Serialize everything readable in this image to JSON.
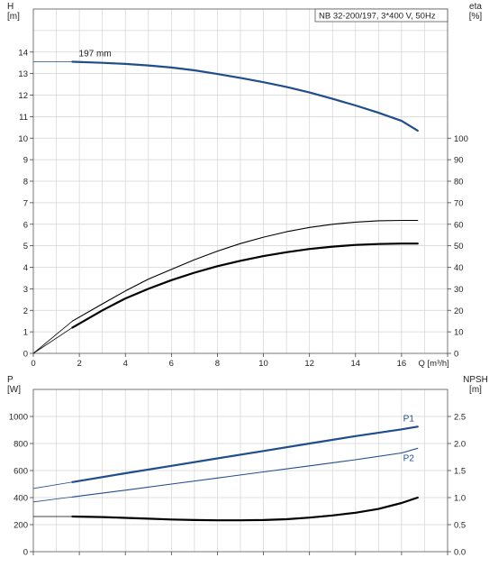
{
  "chart_data": [
    {
      "type": "line",
      "title": "NB 32-200/197, 3*400 V, 50Hz",
      "xlabel": "Q [m³/h]",
      "ylabel": "H\n[m]",
      "ylabel_lines": [
        "H",
        "[m]"
      ],
      "y2label_lines": [
        "eta",
        "[%]"
      ],
      "xlim": [
        0,
        18
      ],
      "xticks": [
        0,
        2,
        4,
        6,
        8,
        10,
        12,
        14,
        16
      ],
      "ylim": [
        0,
        16
      ],
      "yticks": [
        0,
        1,
        2,
        3,
        4,
        5,
        6,
        7,
        8,
        9,
        10,
        11,
        12,
        13,
        14
      ],
      "y2ticks": [
        0,
        10,
        20,
        30,
        40,
        50,
        60,
        70,
        80,
        90,
        100
      ],
      "y2lim": [
        0,
        160
      ],
      "grid": true,
      "annotations": [
        {
          "text": "197 mm",
          "x": 1.0,
          "y": 13.6
        }
      ],
      "series": [
        {
          "name": "197 mm",
          "axis": "y",
          "color": "#1f4e8c",
          "x": [
            1.7,
            3,
            4,
            5,
            6,
            7,
            8,
            9,
            10,
            11,
            12,
            13,
            14,
            15,
            16,
            16.7
          ],
          "y": [
            13.55,
            13.5,
            13.45,
            13.38,
            13.28,
            13.15,
            12.98,
            12.8,
            12.6,
            12.38,
            12.12,
            11.83,
            11.52,
            11.18,
            10.8,
            10.35
          ]
        },
        {
          "name": "",
          "axis": "y",
          "color": "#000000",
          "x": [
            1.7,
            3,
            4,
            5,
            6,
            7,
            8,
            9,
            10,
            11,
            12,
            13,
            14,
            15,
            16,
            16.7
          ],
          "y": [
            1.2,
            2.0,
            2.55,
            3.0,
            3.4,
            3.75,
            4.05,
            4.3,
            4.52,
            4.7,
            4.85,
            4.96,
            5.04,
            5.08,
            5.1,
            5.1
          ]
        },
        {
          "name": "",
          "axis": "y2",
          "color": "#000000",
          "x": [
            1.7,
            3,
            4,
            5,
            6,
            7,
            8,
            9,
            10,
            11,
            12,
            13,
            14,
            15,
            16,
            16.7
          ],
          "y": [
            15,
            23,
            29,
            34.5,
            39,
            43.5,
            47.5,
            51,
            54,
            56.5,
            58.5,
            60,
            61,
            61.6,
            61.8,
            61.8
          ]
        }
      ]
    },
    {
      "type": "line",
      "title": "",
      "xlabel": "",
      "ylabel_lines": [
        "P",
        "[W]"
      ],
      "y2label_lines": [
        "NPSH",
        "[m]"
      ],
      "xlim": [
        0,
        18
      ],
      "ylim": [
        0,
        1200
      ],
      "yticks": [
        0,
        200,
        400,
        600,
        800,
        1000
      ],
      "y2lim": [
        0,
        3
      ],
      "y2ticks": [
        "0.0",
        "0.5",
        "1.0",
        "1.5",
        "2.0",
        "2.5"
      ],
      "grid": true,
      "series": [
        {
          "name": "P1",
          "axis": "y",
          "color": "#1f4e8c",
          "x": [
            1.7,
            4,
            6,
            8,
            10,
            12,
            14,
            16,
            16.7
          ],
          "y": [
            515,
            580,
            635,
            690,
            745,
            800,
            855,
            905,
            925
          ]
        },
        {
          "name": "P2",
          "axis": "y",
          "color": "#1f4e8c",
          "x": [
            1.7,
            4,
            6,
            8,
            10,
            12,
            14,
            16,
            16.7
          ],
          "y": [
            405,
            455,
            500,
            545,
            590,
            635,
            680,
            730,
            765
          ]
        },
        {
          "name": "",
          "axis": "y2",
          "color": "#000000",
          "x": [
            1.7,
            3,
            4,
            5,
            6,
            7,
            8,
            9,
            10,
            11,
            12,
            13,
            14,
            15,
            16,
            16.7
          ],
          "y": [
            0.65,
            0.64,
            0.625,
            0.61,
            0.595,
            0.585,
            0.58,
            0.58,
            0.585,
            0.6,
            0.63,
            0.67,
            0.72,
            0.79,
            0.9,
            1.0
          ]
        }
      ]
    }
  ]
}
